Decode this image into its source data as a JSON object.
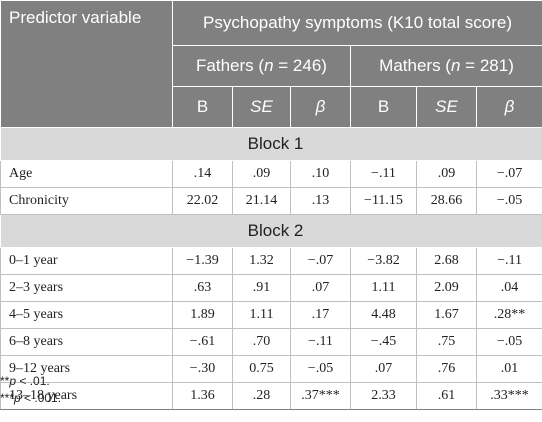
{
  "table": {
    "header": {
      "predictor_label": "Predictor variable",
      "outcome_label": "Psychopathy symptoms (K10 total score)",
      "fathers": {
        "name": "Fathers",
        "n_label": "n",
        "n_value": "= 246"
      },
      "mothers": {
        "name": "Mathers",
        "n_label": "n",
        "n_value": "= 281"
      },
      "stats": [
        "B",
        "SE",
        "β",
        "B",
        "SE",
        "β"
      ]
    },
    "blocks": [
      {
        "title": "Block 1",
        "rows": [
          {
            "label": "Age",
            "cells": [
              ".14",
              ".09",
              ".10",
              "−.11",
              ".09",
              "−.07"
            ]
          },
          {
            "label": "Chronicity",
            "cells": [
              "22.02",
              "21.14",
              ".13",
              "−11.15",
              "28.66",
              "−.05"
            ]
          }
        ]
      },
      {
        "title": "Block 2",
        "rows": [
          {
            "label": "0–1 year",
            "cells": [
              "−1.39",
              "1.32",
              "−.07",
              "−3.82",
              "2.68",
              "−.11"
            ]
          },
          {
            "label": "2–3 years",
            "cells": [
              ".63",
              ".91",
              ".07",
              "1.11",
              "2.09",
              ".04"
            ]
          },
          {
            "label": "4–5 years",
            "cells": [
              "1.89",
              "1.11",
              ".17",
              "4.48",
              "1.67",
              ".28**"
            ]
          },
          {
            "label": "6–8 years",
            "cells": [
              "−.61",
              ".70",
              "−.11",
              "−.45",
              ".75",
              "−.05"
            ]
          },
          {
            "label": "9–12 years",
            "cells": [
              "−.30",
              "0.75",
              "−.05",
              ".07",
              ".76",
              ".01"
            ]
          },
          {
            "label": "13–18 years",
            "cells": [
              "1.36",
              ".28",
              ".37***",
              "2.33",
              ".61",
              ".33***"
            ]
          }
        ]
      }
    ]
  },
  "notes": [
    {
      "stars": "**",
      "p": "p",
      "text": " < .01."
    },
    {
      "stars": "***",
      "p": "p",
      "text": " < .001."
    }
  ],
  "colors": {
    "header_bg": "#808080",
    "block_bg": "#d9d9d9"
  }
}
